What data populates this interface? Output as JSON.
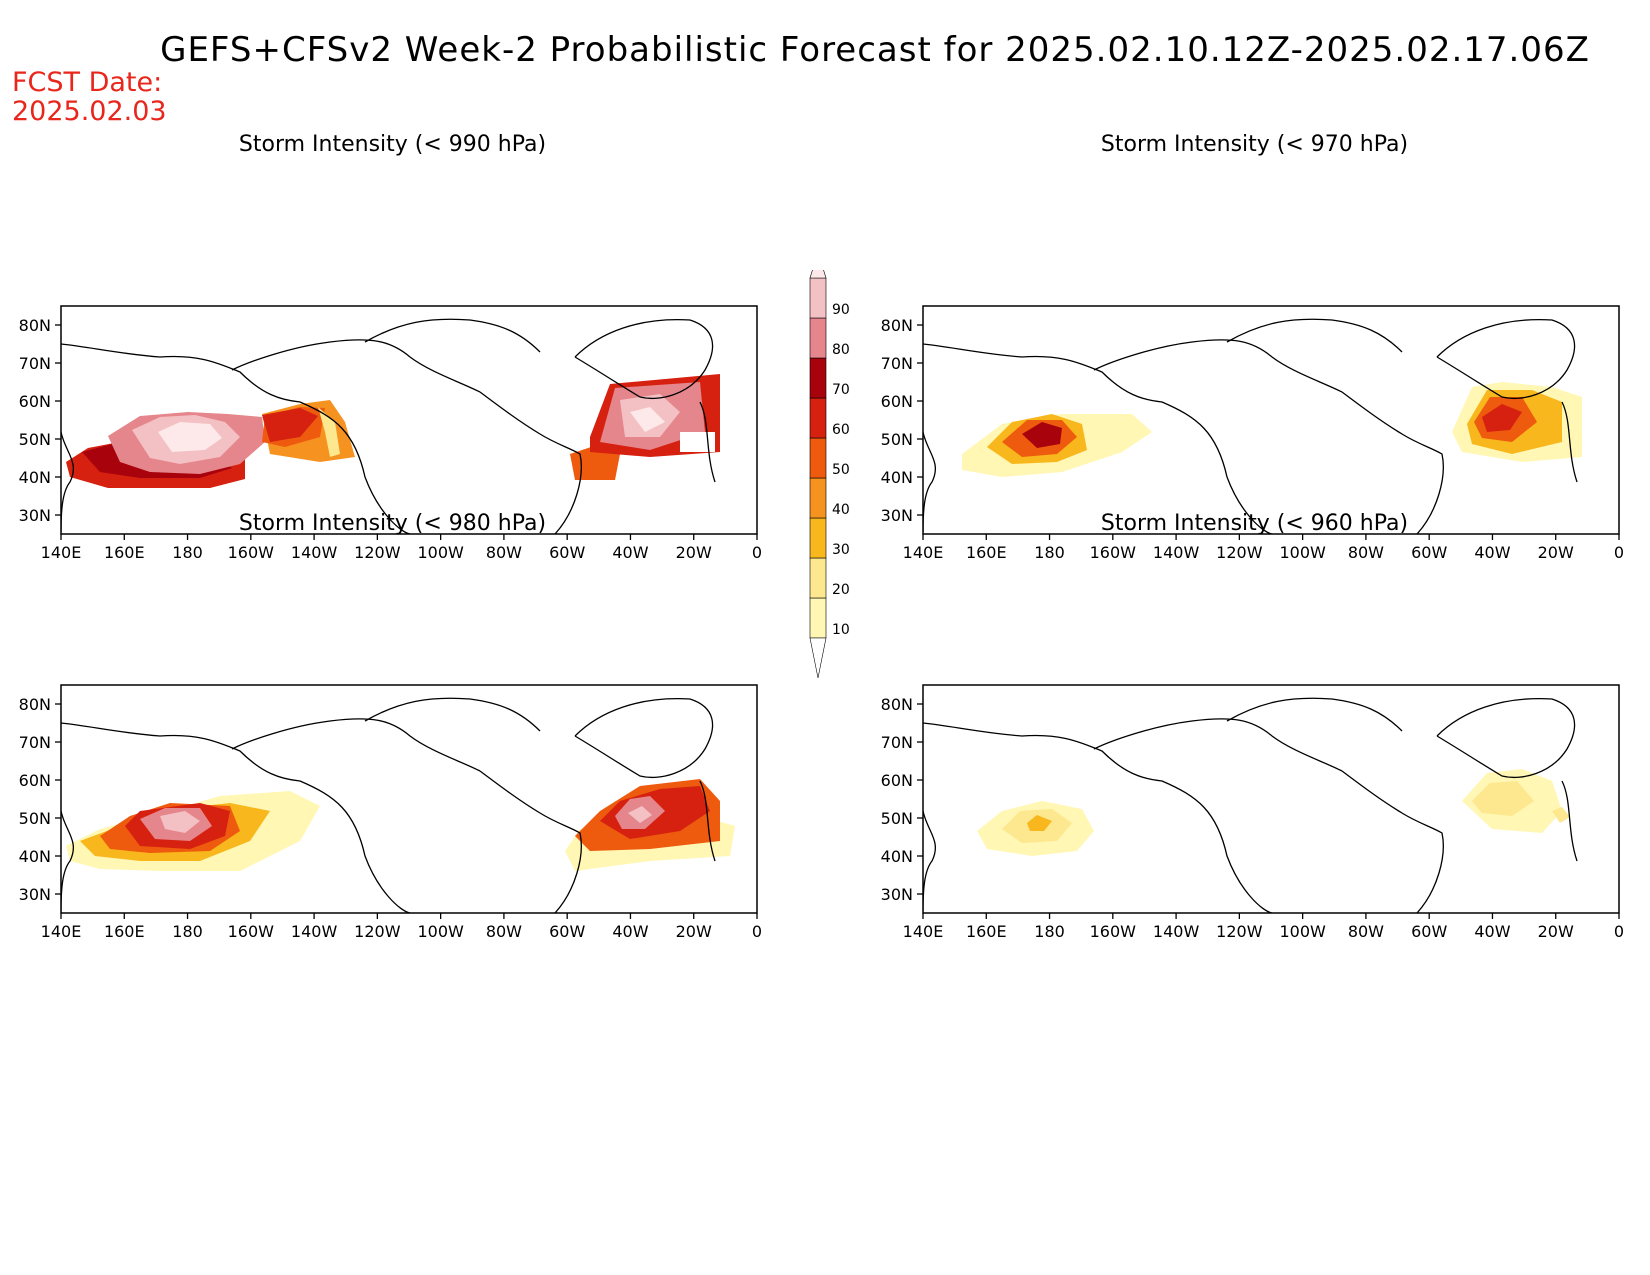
{
  "title": "GEFS+CFSv2 Week-2 Probabilistic Forecast for 2025.02.10.12Z-2025.02.17.06Z",
  "fcst_label": "FCST Date:",
  "fcst_date": "2025.02.03",
  "lat_ticks": [
    "80N",
    "70N",
    "60N",
    "50N",
    "40N",
    "30N"
  ],
  "lon_ticks": [
    "140E",
    "160E",
    "180",
    "160W",
    "140W",
    "120W",
    "100W",
    "80W",
    "60W",
    "40W",
    "20W",
    "0"
  ],
  "colorbar": {
    "levels": [
      "90",
      "80",
      "70",
      "60",
      "50",
      "40",
      "30",
      "20",
      "10"
    ],
    "colors": {
      "10": "#fff7b3",
      "20": "#fde78f",
      "30": "#f8b71c",
      "40": "#f69320",
      "50": "#ee5a0e",
      "60": "#d62010",
      "70": "#a8020c",
      "80": "#e5868c",
      "90": "#f3c0c4",
      "top": "#fde8ea"
    }
  },
  "panels": [
    {
      "id": "p990",
      "title": "Storm Intensity (< 990 hPa)"
    },
    {
      "id": "p970",
      "title": "Storm Intensity (< 970 hPa)"
    },
    {
      "id": "p980",
      "title": "Storm Intensity (< 980 hPa)"
    },
    {
      "id": "p960",
      "title": "Storm Intensity (< 960 hPa)"
    }
  ]
}
